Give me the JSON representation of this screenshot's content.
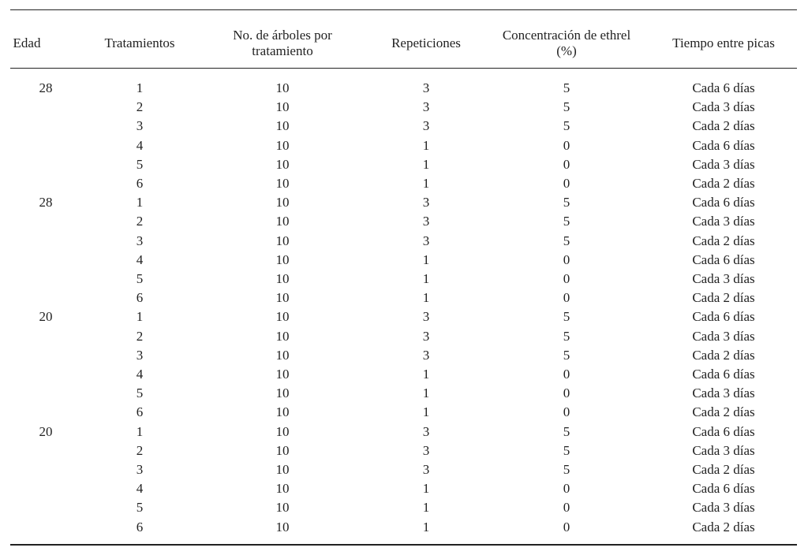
{
  "headers": [
    "Edad",
    "Tratamientos",
    "No. de árboles por tratamiento",
    "Repeticiones",
    "Concentración de ethrel (%)",
    "Tiempo entre picas"
  ],
  "header_lines": [
    [
      "Edad"
    ],
    [
      "Tratamientos"
    ],
    [
      "No. de árboles por",
      "tratamiento"
    ],
    [
      "Repeticiones"
    ],
    [
      "Concentración de ethrel",
      "(%)"
    ],
    [
      "Tiempo entre picas"
    ]
  ],
  "rows": [
    [
      "28",
      "1",
      "10",
      "3",
      "5",
      "Cada 6 días"
    ],
    [
      "",
      "2",
      "10",
      "3",
      "5",
      "Cada 3 días"
    ],
    [
      "",
      "3",
      "10",
      "3",
      "5",
      "Cada 2 días"
    ],
    [
      "",
      "4",
      "10",
      "1",
      "0",
      "Cada 6 días"
    ],
    [
      "",
      "5",
      "10",
      "1",
      "0",
      "Cada 3 días"
    ],
    [
      "",
      "6",
      "10",
      "1",
      "0",
      "Cada 2 días"
    ],
    [
      "28",
      "1",
      "10",
      "3",
      "5",
      "Cada 6 días"
    ],
    [
      "",
      "2",
      "10",
      "3",
      "5",
      "Cada 3 días"
    ],
    [
      "",
      "3",
      "10",
      "3",
      "5",
      "Cada 2 días"
    ],
    [
      "",
      "4",
      "10",
      "1",
      "0",
      "Cada 6 días"
    ],
    [
      "",
      "5",
      "10",
      "1",
      "0",
      "Cada 3 días"
    ],
    [
      "",
      "6",
      "10",
      "1",
      "0",
      "Cada 2 días"
    ],
    [
      "20",
      "1",
      "10",
      "3",
      "5",
      "Cada 6 días"
    ],
    [
      "",
      "2",
      "10",
      "3",
      "5",
      "Cada 3 días"
    ],
    [
      "",
      "3",
      "10",
      "3",
      "5",
      "Cada 2 días"
    ],
    [
      "",
      "4",
      "10",
      "1",
      "0",
      "Cada 6 días"
    ],
    [
      "",
      "5",
      "10",
      "1",
      "0",
      "Cada 3 días"
    ],
    [
      "",
      "6",
      "10",
      "1",
      "0",
      "Cada 2 días"
    ],
    [
      "20",
      "1",
      "10",
      "3",
      "5",
      "Cada 6 días"
    ],
    [
      "",
      "2",
      "10",
      "3",
      "5",
      "Cada 3 días"
    ],
    [
      "",
      "3",
      "10",
      "3",
      "5",
      "Cada 2 días"
    ],
    [
      "",
      "4",
      "10",
      "1",
      "0",
      "Cada 6 días"
    ],
    [
      "",
      "5",
      "10",
      "1",
      "0",
      "Cada 3 días"
    ],
    [
      "",
      "6",
      "10",
      "1",
      "0",
      "Cada 2 días"
    ]
  ]
}
